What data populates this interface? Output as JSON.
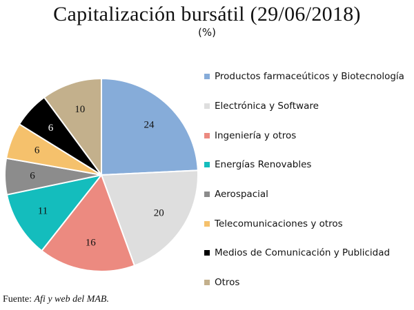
{
  "title": "Capitalización bursátil (29/06/2018)",
  "subtitle": "(%)",
  "source": {
    "prefix": "Fuente: ",
    "italic": "Afi y web del MAB."
  },
  "chart_data": {
    "type": "pie",
    "title": "Capitalización bursátil (29/06/2018)",
    "subtitle": "(%)",
    "unit": "%",
    "legend_position": "right",
    "start_angle_deg": 0,
    "direction": "clockwise",
    "slices": [
      {
        "label": "Productos farmaceúticos y Biotecnología",
        "value": 24,
        "color": "#86acd9",
        "dark": false
      },
      {
        "label": "Electrónica y Software",
        "value": 20,
        "color": "#dedede",
        "dark": false
      },
      {
        "label": "Ingeniería y otros",
        "value": 16,
        "color": "#ec8a80",
        "dark": false
      },
      {
        "label": "Energías Renovables",
        "value": 11,
        "color": "#14bdbd",
        "dark": false
      },
      {
        "label": "Aerospacial",
        "value": 6,
        "color": "#8c8c8c",
        "dark": false
      },
      {
        "label": "Telecomunicaciones y otros",
        "value": 6,
        "color": "#f5c16c",
        "dark": false
      },
      {
        "label": "Medios de Comunicación y Publicidad",
        "value": 6,
        "color": "#000000",
        "dark": true
      },
      {
        "label": "Otros",
        "value": 10,
        "color": "#c3b08c",
        "dark": false
      }
    ]
  }
}
